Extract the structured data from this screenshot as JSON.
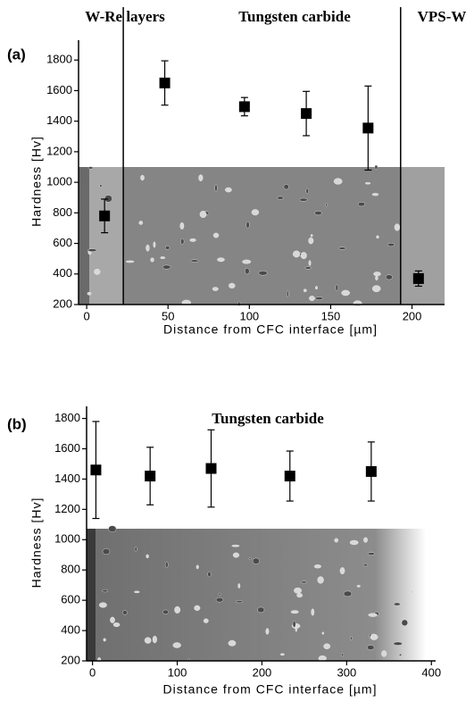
{
  "chart_data": [
    {
      "type": "scatter",
      "panel_label": "(a)",
      "annotations": [
        "W-Re layers",
        "Tungsten carbide",
        "VPS-W"
      ],
      "xlabel": "Distance from CFC interface [µm]",
      "ylabel": "Hardness [Hv]",
      "x": [
        11,
        48,
        97,
        135,
        173,
        204
      ],
      "values": [
        780,
        1650,
        1495,
        1450,
        1355,
        370
      ],
      "errors": [
        110,
        145,
        60,
        145,
        275,
        50
      ],
      "color": "#000000",
      "vlines": [
        22.5,
        193
      ],
      "xlim": [
        -5,
        220
      ],
      "ylim": [
        200,
        1930
      ],
      "xticks": [
        0,
        50,
        100,
        150,
        200
      ],
      "yticks": [
        200,
        400,
        600,
        800,
        1000,
        1200,
        1400,
        1600,
        1800
      ]
    },
    {
      "type": "scatter",
      "panel_label": "(b)",
      "annotations": [
        "Tungsten carbide"
      ],
      "xlabel": "Distance from CFC interface [µm]",
      "ylabel": "Hardness [Hv]",
      "x": [
        4,
        68,
        140,
        233,
        329
      ],
      "values": [
        1460,
        1420,
        1470,
        1420,
        1450
      ],
      "errors": [
        320,
        190,
        255,
        165,
        195
      ],
      "color": "#000000",
      "xlim": [
        -7,
        405
      ],
      "ylim": [
        200,
        1880
      ],
      "xticks": [
        0,
        100,
        200,
        300,
        400
      ],
      "yticks": [
        200,
        400,
        600,
        800,
        1000,
        1200,
        1400,
        1600,
        1800
      ]
    }
  ]
}
